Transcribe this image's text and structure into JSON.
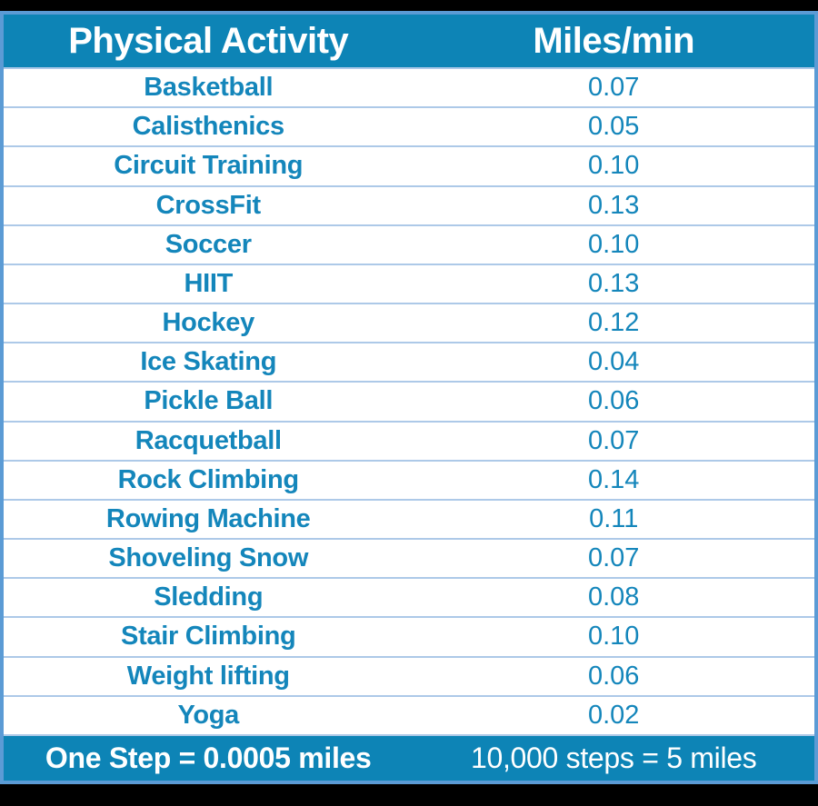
{
  "colors": {
    "band_bg": "#0d84b6",
    "row_text": "#1486bb",
    "divider": "#adc9e8",
    "border": "#5b9bd5",
    "canvas_bg": "#000000",
    "band_text": "#ffffff"
  },
  "table": {
    "header": {
      "activity": "Physical Activity",
      "value": "Miles/min"
    },
    "rows": [
      {
        "activity": "Basketball",
        "value": "0.07"
      },
      {
        "activity": "Calisthenics",
        "value": "0.05"
      },
      {
        "activity": "Circuit Training",
        "value": "0.10"
      },
      {
        "activity": "CrossFit",
        "value": "0.13"
      },
      {
        "activity": "Soccer",
        "value": "0.10"
      },
      {
        "activity": "HIIT",
        "value": "0.13"
      },
      {
        "activity": "Hockey",
        "value": "0.12"
      },
      {
        "activity": "Ice Skating",
        "value": "0.04"
      },
      {
        "activity": "Pickle Ball",
        "value": "0.06"
      },
      {
        "activity": "Racquetball",
        "value": "0.07"
      },
      {
        "activity": "Rock Climbing",
        "value": "0.14"
      },
      {
        "activity": "Rowing Machine",
        "value": "0.11"
      },
      {
        "activity": "Shoveling Snow",
        "value": "0.07"
      },
      {
        "activity": "Sledding",
        "value": "0.08"
      },
      {
        "activity": "Stair Climbing",
        "value": "0.10"
      },
      {
        "activity": "Weight lifting",
        "value": "0.06"
      },
      {
        "activity": "Yoga",
        "value": "0.02"
      }
    ],
    "footer": {
      "left": "One Step = 0.0005 miles",
      "right": "10,000 steps = 5 miles"
    }
  },
  "chart_data": {
    "type": "table",
    "columns": [
      "Physical Activity",
      "Miles/min"
    ],
    "categories": [
      "Basketball",
      "Calisthenics",
      "Circuit Training",
      "CrossFit",
      "Soccer",
      "HIIT",
      "Hockey",
      "Ice Skating",
      "Pickle Ball",
      "Racquetball",
      "Rock Climbing",
      "Rowing Machine",
      "Shoveling Snow",
      "Sledding",
      "Stair Climbing",
      "Weight lifting",
      "Yoga"
    ],
    "values": [
      0.07,
      0.05,
      0.1,
      0.13,
      0.1,
      0.13,
      0.12,
      0.04,
      0.06,
      0.07,
      0.14,
      0.11,
      0.07,
      0.08,
      0.1,
      0.06,
      0.02
    ],
    "footnotes": [
      "One Step = 0.0005 miles",
      "10,000 steps = 5 miles"
    ]
  }
}
